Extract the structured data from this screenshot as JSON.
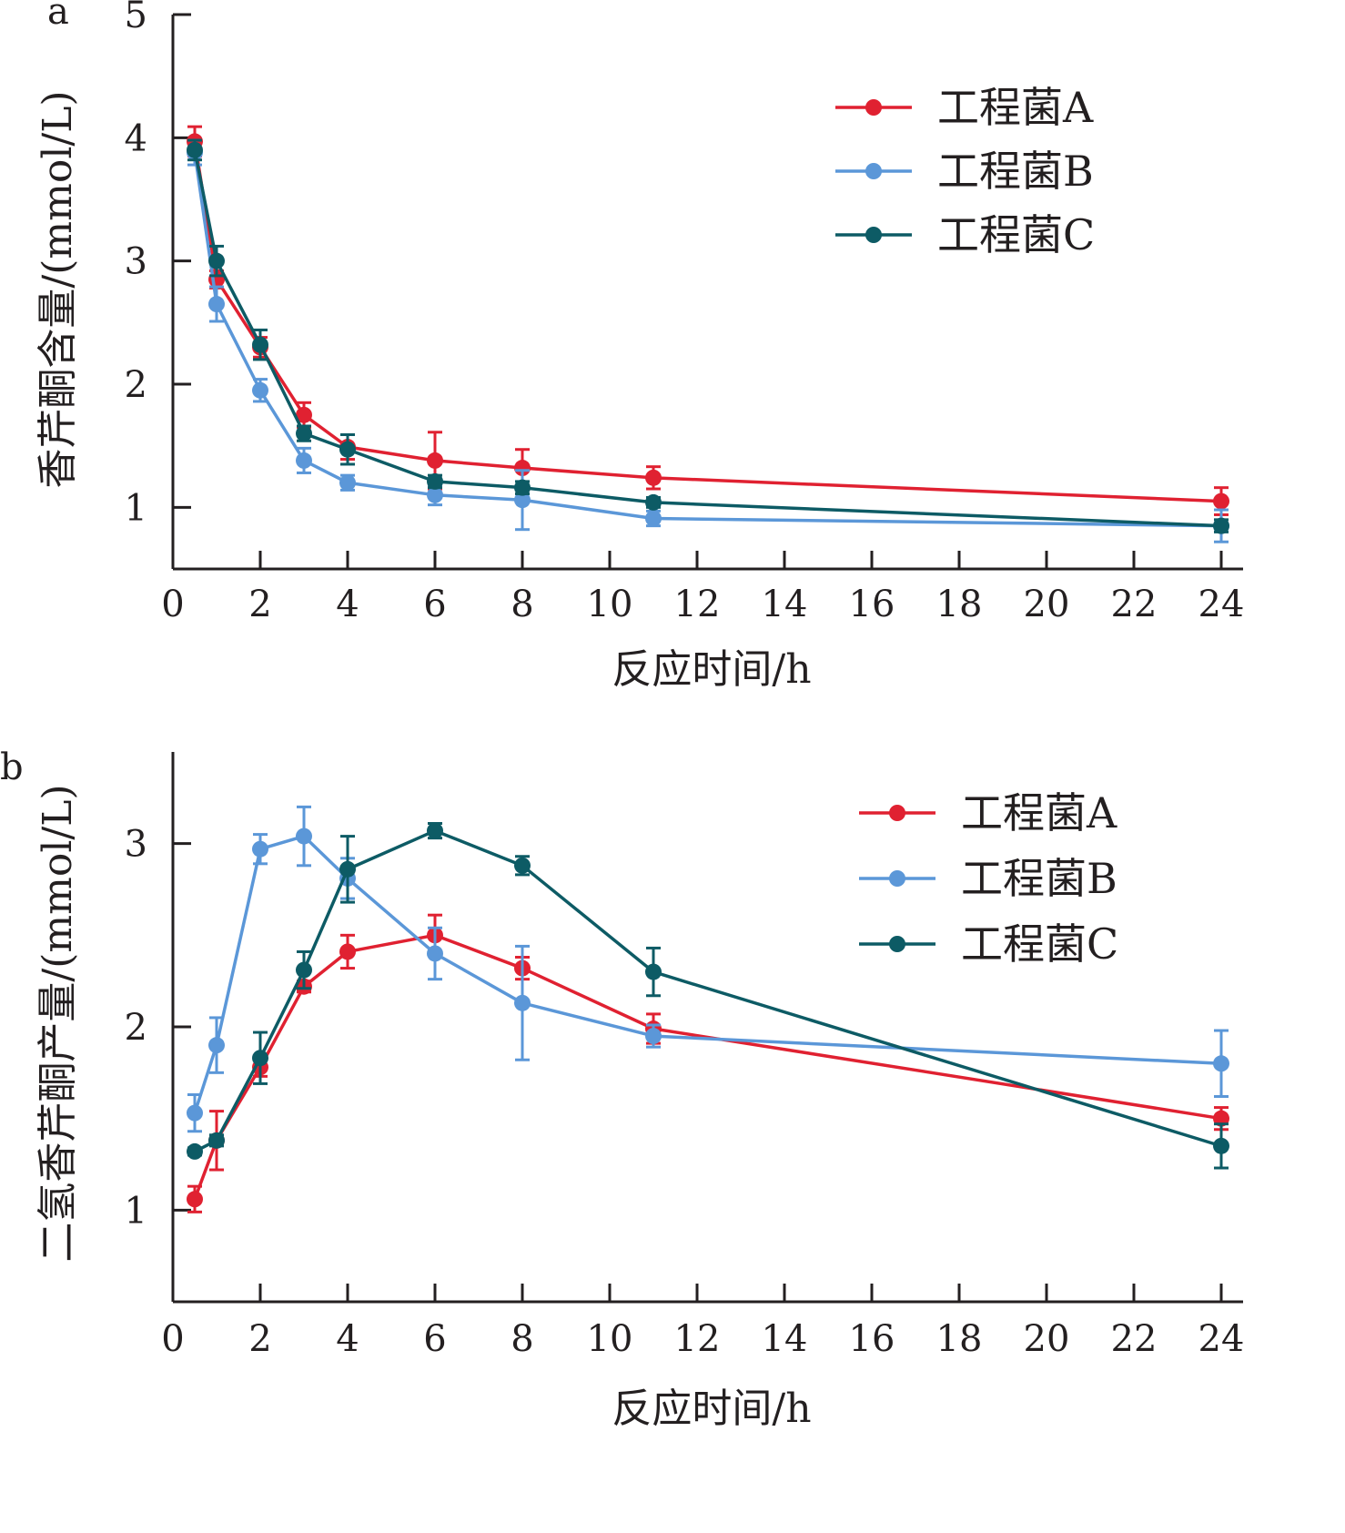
{
  "colors": {
    "axis": "#231f20",
    "series_a": "#e02131",
    "series_b": "#5b97d8",
    "series_c": "#0d5b65"
  },
  "chart_data": [
    {
      "panel": "a",
      "type": "line",
      "xlabel": "反应时间/h",
      "ylabel": "香芹酮含量/(mmol/L)",
      "xlim": [
        0,
        24.5
      ],
      "ylim": [
        0.5,
        5
      ],
      "xticks": [
        0,
        2,
        4,
        6,
        8,
        10,
        12,
        14,
        16,
        18,
        20,
        22,
        24
      ],
      "yticks": [
        1,
        2,
        3,
        4,
        5
      ],
      "grid": false,
      "legend_position": "top-right",
      "series": [
        {
          "name": "工程菌A",
          "color": "#e02131",
          "x": [
            0.5,
            1,
            2,
            3,
            4,
            6,
            8,
            11,
            24
          ],
          "y": [
            3.97,
            2.85,
            2.3,
            1.75,
            1.49,
            1.38,
            1.32,
            1.24,
            1.05
          ],
          "err": [
            0.12,
            0.07,
            0.08,
            0.1,
            0.1,
            0.23,
            0.15,
            0.09,
            0.11
          ]
        },
        {
          "name": "工程菌B",
          "color": "#5b97d8",
          "x": [
            0.5,
            1,
            2,
            3,
            4,
            6,
            8,
            11,
            24
          ],
          "y": [
            3.88,
            2.65,
            1.95,
            1.38,
            1.2,
            1.1,
            1.06,
            0.91,
            0.85
          ],
          "err": [
            0.1,
            0.14,
            0.09,
            0.1,
            0.06,
            0.08,
            0.24,
            0.06,
            0.13
          ]
        },
        {
          "name": "工程菌C",
          "color": "#0d5b65",
          "x": [
            0.5,
            1,
            2,
            3,
            4,
            6,
            8,
            11,
            24
          ],
          "y": [
            3.9,
            3.0,
            2.32,
            1.6,
            1.47,
            1.21,
            1.16,
            1.04,
            0.85
          ],
          "err": [
            0.08,
            0.12,
            0.12,
            0.06,
            0.12,
            0.05,
            0.05,
            0.04,
            0.05
          ]
        }
      ]
    },
    {
      "panel": "b",
      "type": "line",
      "xlabel": "反应时间/h",
      "ylabel": "二氢香芹酮产量/(mmol/L)",
      "xlim": [
        0,
        24.5
      ],
      "ylim": [
        0.5,
        3.5
      ],
      "xticks": [
        0,
        2,
        4,
        6,
        8,
        10,
        12,
        14,
        16,
        18,
        20,
        22,
        24
      ],
      "yticks": [
        1,
        2,
        3
      ],
      "grid": false,
      "legend_position": "top-right",
      "series": [
        {
          "name": "工程菌A",
          "color": "#e02131",
          "x": [
            0.5,
            1,
            2,
            3,
            4,
            6,
            8,
            11,
            24
          ],
          "y": [
            1.06,
            1.38,
            1.78,
            2.22,
            2.41,
            2.5,
            2.32,
            1.99,
            1.5
          ],
          "err": [
            0.07,
            0.16,
            0.05,
            0.03,
            0.09,
            0.11,
            0.06,
            0.08,
            0.06
          ]
        },
        {
          "name": "工程菌B",
          "color": "#5b97d8",
          "x": [
            0.5,
            1,
            2,
            3,
            4,
            6,
            8,
            11,
            24
          ],
          "y": [
            1.53,
            1.9,
            2.97,
            3.04,
            2.81,
            2.4,
            2.13,
            1.95,
            1.8
          ],
          "err": [
            0.1,
            0.15,
            0.08,
            0.16,
            0.11,
            0.14,
            0.31,
            0.06,
            0.18
          ]
        },
        {
          "name": "工程菌C",
          "color": "#0d5b65",
          "x": [
            0.5,
            1,
            2,
            3,
            4,
            6,
            8,
            11,
            24
          ],
          "y": [
            1.32,
            1.38,
            1.83,
            2.31,
            2.86,
            3.07,
            2.88,
            2.3,
            1.35
          ],
          "err": [
            0.02,
            0.03,
            0.14,
            0.1,
            0.18,
            0.04,
            0.05,
            0.13,
            0.12
          ]
        }
      ]
    }
  ]
}
